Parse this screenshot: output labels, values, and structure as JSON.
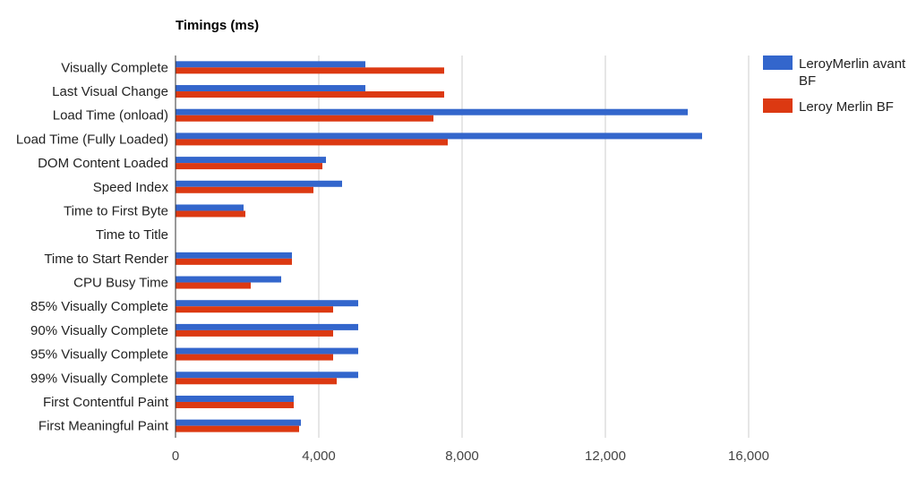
{
  "chart_data": {
    "type": "bar",
    "orientation": "horizontal",
    "title": "Timings (ms)",
    "xlabel": "",
    "ylabel": "",
    "xlim": [
      0,
      16000
    ],
    "x_ticks": [
      0,
      4000,
      8000,
      12000,
      16000
    ],
    "x_tick_labels": [
      "0",
      "4,000",
      "8,000",
      "12,000",
      "16,000"
    ],
    "grid": true,
    "legend_position": "right",
    "categories": [
      "Visually Complete",
      "Last Visual Change",
      "Load Time (onload)",
      "Load Time (Fully Loaded)",
      "DOM Content Loaded",
      "Speed Index",
      "Time to First Byte",
      "Time to Title",
      "Time to Start Render",
      "CPU Busy Time",
      "85% Visually Complete",
      "90% Visually Complete",
      "95% Visually Complete",
      "99% Visually Complete",
      "First Contentful Paint",
      "First Meaningful Paint"
    ],
    "series": [
      {
        "name": "LeroyMerlin avant BF",
        "color": "#3366cc",
        "values": [
          5300,
          5300,
          14300,
          14700,
          4200,
          4650,
          1900,
          0,
          3250,
          2950,
          5100,
          5100,
          5100,
          5100,
          3300,
          3500
        ]
      },
      {
        "name": "Leroy Merlin BF",
        "color": "#dc3912",
        "values": [
          7500,
          7500,
          7200,
          7600,
          4100,
          3850,
          1950,
          0,
          3250,
          2100,
          4400,
          4400,
          4400,
          4500,
          3300,
          3450
        ]
      }
    ]
  }
}
